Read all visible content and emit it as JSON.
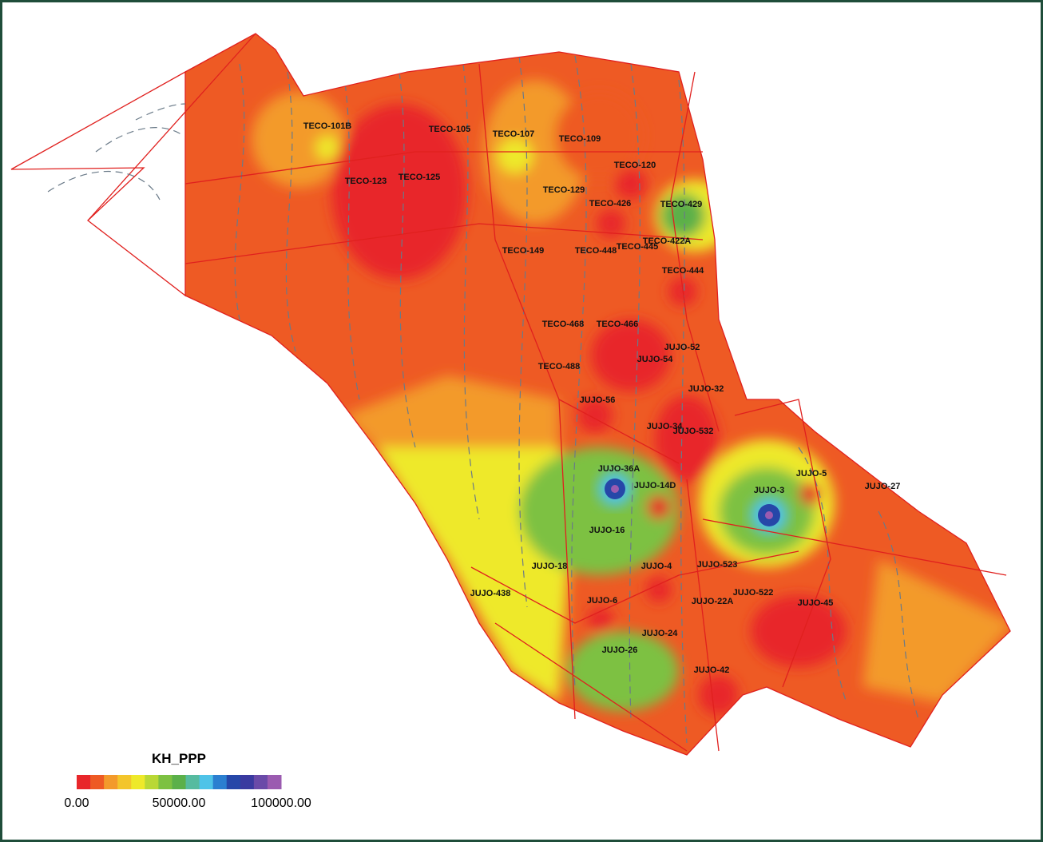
{
  "wells": [
    "TECO-101B",
    "TECO-105",
    "TECO-107",
    "TECO-109",
    "TECO-120",
    "TECO-123",
    "TECO-125",
    "TECO-129",
    "TECO-426",
    "TECO-429",
    "TECO-422A",
    "TECO-445",
    "TECO-149",
    "TECO-448",
    "TECO-444",
    "TECO-468",
    "TECO-466",
    "JUJO-52",
    "JUJO-54",
    "TECO-488",
    "JUJO-32",
    "JUJO-56",
    "JUJO-34",
    "JUJO-532",
    "JUJO-36A",
    "JUJO-14D",
    "JUJO-3",
    "JUJO-5",
    "JUJO-27",
    "JUJO-16",
    "JUJO-18",
    "JUJO-4",
    "JUJO-523",
    "JUJO-438",
    "JUJO-6",
    "JUJO-22A",
    "JUJO-522",
    "JUJO-45",
    "JUJO-24",
    "JUJO-26",
    "JUJO-42"
  ],
  "legend": {
    "title": "KH_PPP",
    "range": [
      0,
      100000
    ],
    "colors": [
      "#e8262a",
      "#ee5a24",
      "#f39a2b",
      "#f3c52b",
      "#eee92a",
      "#b9d835",
      "#7dc142",
      "#5bb04a",
      "#56bba0",
      "#4fc3e8",
      "#2b7fd0",
      "#2647a8",
      "#3a3aa0",
      "#6a4aa8",
      "#9b5bb0"
    ],
    "ticks": [
      {
        "value": 0,
        "label": "0.00"
      },
      {
        "value": 50000,
        "label": "50000.00"
      },
      {
        "value": 100000,
        "label": "100000.00"
      }
    ]
  }
}
